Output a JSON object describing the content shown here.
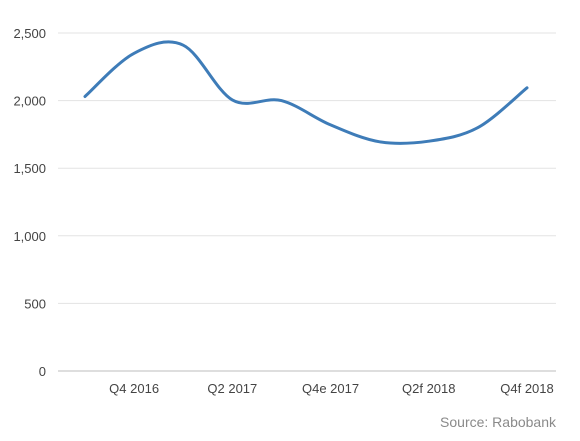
{
  "chart_data": {
    "type": "line",
    "title": "",
    "xlabel": "",
    "ylabel": "",
    "ylim": [
      0,
      2500
    ],
    "y_ticks": [
      0,
      500,
      1000,
      1500,
      2000,
      2500
    ],
    "y_tick_labels": [
      "0",
      "500",
      "1,000",
      "1,500",
      "2,000",
      "2,500"
    ],
    "x_tick_labels": [
      "Q4 2016",
      "Q2 2017",
      "Q4e 2017",
      "Q2f 2018",
      "Q4f 2018"
    ],
    "grid": "horizontal",
    "legend": "none",
    "series": [
      {
        "color": "#3e7cb8",
        "values": [
          2030,
          2350,
          2410,
          2005,
          2000,
          1820,
          1695,
          1700,
          1800,
          2095
        ]
      }
    ]
  },
  "source_text": "Source: Rabobank"
}
